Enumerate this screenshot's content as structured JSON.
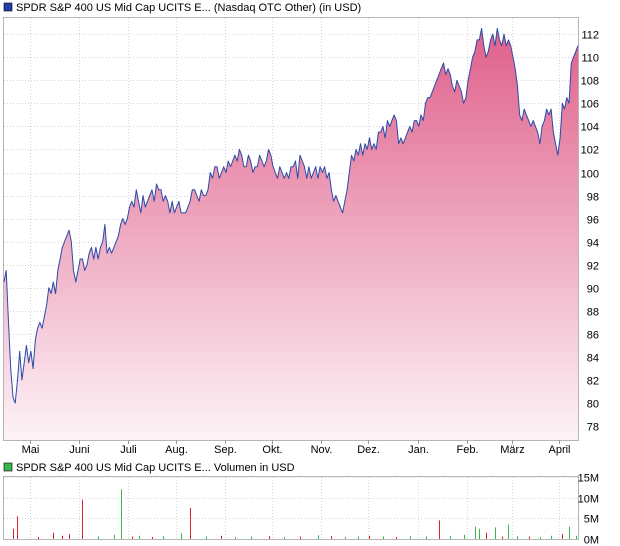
{
  "price_panel": {
    "legend_label": "SPDR S&P 400 US Mid Cap UCITS E... (Nasdaq OTC Other) (in USD)",
    "legend_color": "#1f3fa8"
  },
  "volume_panel": {
    "legend_label": "SPDR S&P 400 US Mid Cap UCITS E... Volumen in USD",
    "legend_color": "#39b54a"
  },
  "chart_data": [
    {
      "type": "area",
      "series": [
        {
          "name": "SPDR S&P 400 US Mid Cap UCITS E... (Nasdaq OTC Other) (in USD)"
        }
      ],
      "y_ticks": [
        78,
        80,
        82,
        84,
        86,
        88,
        90,
        92,
        94,
        96,
        98,
        100,
        102,
        104,
        106,
        108,
        110,
        112
      ],
      "ylim": [
        76.8,
        113.4
      ],
      "x_tick_labels": [
        "Mai",
        "Juni",
        "Juli",
        "Aug.",
        "Sep.",
        "Okt.",
        "Nov.",
        "Dez.",
        "Jan.",
        "Feb.",
        "März",
        "April"
      ],
      "x_tick_positions": [
        11.5,
        33.5,
        55.5,
        76.5,
        98.5,
        119.5,
        141.5,
        162.5,
        184.5,
        206.5,
        226.5,
        247.5
      ],
      "x_range": [
        0,
        256
      ],
      "line_color": "#2a4aa8",
      "fill_top_color": "#e0608a",
      "fill_bottom_color": "#fdf3f7",
      "grid": true,
      "points": [
        [
          0,
          90.5
        ],
        [
          1,
          91.5
        ],
        [
          2,
          87
        ],
        [
          3,
          83
        ],
        [
          4,
          80.5
        ],
        [
          5,
          80
        ],
        [
          6,
          82
        ],
        [
          7,
          84.5
        ],
        [
          8,
          82
        ],
        [
          9,
          83.5
        ],
        [
          10,
          85
        ],
        [
          11,
          83.5
        ],
        [
          12,
          84.5
        ],
        [
          13,
          83
        ],
        [
          14,
          85.5
        ],
        [
          15,
          86.5
        ],
        [
          16,
          87
        ],
        [
          17,
          86.5
        ],
        [
          18,
          87.5
        ],
        [
          19,
          88.5
        ],
        [
          20,
          90
        ],
        [
          21,
          89.5
        ],
        [
          22,
          90.5
        ],
        [
          23,
          89.5
        ],
        [
          24,
          91.5
        ],
        [
          25,
          92.5
        ],
        [
          26,
          93.5
        ],
        [
          27,
          94
        ],
        [
          28,
          94.5
        ],
        [
          29,
          95
        ],
        [
          30,
          94
        ],
        [
          31,
          91.5
        ],
        [
          32,
          90.5
        ],
        [
          33,
          91.5
        ],
        [
          34,
          92.5
        ],
        [
          35,
          92.5
        ],
        [
          36,
          91.5
        ],
        [
          37,
          92
        ],
        [
          38,
          93
        ],
        [
          39,
          93.5
        ],
        [
          40,
          92.5
        ],
        [
          41,
          93.5
        ],
        [
          42,
          92.5
        ],
        [
          43,
          93.5
        ],
        [
          44,
          94
        ],
        [
          45,
          95.5
        ],
        [
          46,
          93
        ],
        [
          47,
          93.5
        ],
        [
          48,
          93
        ],
        [
          49,
          93.5
        ],
        [
          50,
          94
        ],
        [
          51,
          94.5
        ],
        [
          52,
          95.5
        ],
        [
          53,
          96
        ],
        [
          54,
          95.5
        ],
        [
          55,
          96
        ],
        [
          56,
          97
        ],
        [
          57,
          97.5
        ],
        [
          58,
          97
        ],
        [
          59,
          98.5
        ],
        [
          60,
          97.5
        ],
        [
          61,
          96.5
        ],
        [
          62,
          98
        ],
        [
          63,
          97
        ],
        [
          64,
          97.5
        ],
        [
          65,
          98
        ],
        [
          66,
          98.5
        ],
        [
          67,
          97.5
        ],
        [
          68,
          99
        ],
        [
          69,
          98.5
        ],
        [
          70,
          98.5
        ],
        [
          71,
          97.5
        ],
        [
          72,
          98
        ],
        [
          73,
          97.5
        ],
        [
          74,
          96.5
        ],
        [
          75,
          97.5
        ],
        [
          76,
          96.5
        ],
        [
          77,
          97
        ],
        [
          78,
          97.5
        ],
        [
          79,
          96.5
        ],
        [
          80,
          96.5
        ],
        [
          81,
          96.5
        ],
        [
          82,
          97
        ],
        [
          83,
          97.5
        ],
        [
          84,
          98.5
        ],
        [
          85,
          98.5
        ],
        [
          86,
          98
        ],
        [
          87,
          97.5
        ],
        [
          88,
          98.5
        ],
        [
          89,
          98
        ],
        [
          90,
          98
        ],
        [
          91,
          98.5
        ],
        [
          92,
          100
        ],
        [
          93,
          99.5
        ],
        [
          94,
          100.5
        ],
        [
          95,
          100.5
        ],
        [
          96,
          99.5
        ],
        [
          97,
          100
        ],
        [
          98,
          100.5
        ],
        [
          99,
          100
        ],
        [
          100,
          101
        ],
        [
          101,
          100.5
        ],
        [
          102,
          101
        ],
        [
          103,
          101.5
        ],
        [
          104,
          101
        ],
        [
          105,
          102
        ],
        [
          106,
          101.5
        ],
        [
          107,
          100.5
        ],
        [
          108,
          100.5
        ],
        [
          109,
          101.5
        ],
        [
          110,
          101
        ],
        [
          111,
          100
        ],
        [
          112,
          100.5
        ],
        [
          113,
          100.5
        ],
        [
          114,
          101.5
        ],
        [
          115,
          101
        ],
        [
          116,
          100.5
        ],
        [
          117,
          101
        ],
        [
          118,
          102
        ],
        [
          119,
          101.5
        ],
        [
          120,
          100.5
        ],
        [
          121,
          100
        ],
        [
          122,
          99.5
        ],
        [
          123,
          100.5
        ],
        [
          124,
          100
        ],
        [
          125,
          99.5
        ],
        [
          126,
          100
        ],
        [
          127,
          99.5
        ],
        [
          128,
          100.5
        ],
        [
          129,
          100.5
        ],
        [
          130,
          101
        ],
        [
          131,
          99.5
        ],
        [
          132,
          101.5
        ],
        [
          133,
          101
        ],
        [
          134,
          100.5
        ],
        [
          135,
          99.5
        ],
        [
          136,
          100.5
        ],
        [
          137,
          99.5
        ],
        [
          138,
          100
        ],
        [
          139,
          100.5
        ],
        [
          140,
          99.5
        ],
        [
          141,
          100.5
        ],
        [
          142,
          100
        ],
        [
          143,
          100.5
        ],
        [
          144,
          99.5
        ],
        [
          145,
          100
        ],
        [
          146,
          98.5
        ],
        [
          147,
          97.5
        ],
        [
          148,
          98
        ],
        [
          149,
          97.5
        ],
        [
          150,
          97
        ],
        [
          151,
          96.5
        ],
        [
          152,
          97.5
        ],
        [
          153,
          98.5
        ],
        [
          154,
          100
        ],
        [
          155,
          101.5
        ],
        [
          156,
          101
        ],
        [
          157,
          102
        ],
        [
          158,
          101.5
        ],
        [
          159,
          102.5
        ],
        [
          160,
          101.5
        ],
        [
          161,
          102.5
        ],
        [
          162,
          102
        ],
        [
          163,
          103
        ],
        [
          164,
          102
        ],
        [
          165,
          102.5
        ],
        [
          166,
          102
        ],
        [
          167,
          103.5
        ],
        [
          168,
          103.5
        ],
        [
          169,
          104
        ],
        [
          170,
          103
        ],
        [
          171,
          104.5
        ],
        [
          172,
          104
        ],
        [
          173,
          104.5
        ],
        [
          174,
          105
        ],
        [
          175,
          104.5
        ],
        [
          176,
          102.5
        ],
        [
          177,
          103
        ],
        [
          178,
          102.5
        ],
        [
          179,
          103
        ],
        [
          180,
          103.5
        ],
        [
          181,
          104
        ],
        [
          182,
          103.5
        ],
        [
          183,
          104.5
        ],
        [
          184,
          104.5
        ],
        [
          185,
          104
        ],
        [
          186,
          105
        ],
        [
          187,
          104.5
        ],
        [
          188,
          106
        ],
        [
          189,
          106.5
        ],
        [
          190,
          106.5
        ],
        [
          191,
          107
        ],
        [
          192,
          107.5
        ],
        [
          193,
          108
        ],
        [
          194,
          108.5
        ],
        [
          195,
          109
        ],
        [
          196,
          109.5
        ],
        [
          197,
          108.5
        ],
        [
          198,
          109
        ],
        [
          199,
          108.5
        ],
        [
          200,
          107.5
        ],
        [
          201,
          107
        ],
        [
          202,
          108
        ],
        [
          203,
          107.5
        ],
        [
          204,
          107
        ],
        [
          205,
          106
        ],
        [
          206,
          106.5
        ],
        [
          207,
          108
        ],
        [
          208,
          109
        ],
        [
          209,
          110
        ],
        [
          210,
          110.5
        ],
        [
          211,
          111.5
        ],
        [
          212,
          111.5
        ],
        [
          213,
          112.5
        ],
        [
          214,
          111
        ],
        [
          215,
          110
        ],
        [
          216,
          110.5
        ],
        [
          217,
          111.5
        ],
        [
          218,
          112
        ],
        [
          219,
          111
        ],
        [
          220,
          112.5
        ],
        [
          221,
          111.5
        ],
        [
          222,
          111
        ],
        [
          223,
          112
        ],
        [
          224,
          111
        ],
        [
          225,
          111.5
        ],
        [
          226,
          111
        ],
        [
          227,
          110
        ],
        [
          228,
          109
        ],
        [
          229,
          107.5
        ],
        [
          230,
          105
        ],
        [
          231,
          104.5
        ],
        [
          232,
          105.5
        ],
        [
          233,
          105
        ],
        [
          234,
          104.5
        ],
        [
          235,
          104
        ],
        [
          236,
          104.5
        ],
        [
          237,
          104
        ],
        [
          238,
          103.5
        ],
        [
          239,
          102.5
        ],
        [
          240,
          104
        ],
        [
          241,
          104.5
        ],
        [
          242,
          105.5
        ],
        [
          243,
          105
        ],
        [
          244,
          105.5
        ],
        [
          245,
          103.5
        ],
        [
          246,
          102.5
        ],
        [
          247,
          101.5
        ],
        [
          248,
          103
        ],
        [
          249,
          106
        ],
        [
          250,
          105.5
        ],
        [
          251,
          106.5
        ],
        [
          252,
          106
        ],
        [
          253,
          109.5
        ],
        [
          254,
          110
        ],
        [
          255,
          110.5
        ],
        [
          256,
          111
        ]
      ]
    },
    {
      "type": "bar",
      "series": [
        {
          "name": "SPDR S&P 400 US Mid Cap UCITS E... Volumen in USD"
        }
      ],
      "y_ticks": [
        0,
        5,
        10,
        15
      ],
      "y_tick_labels": [
        "0M",
        "5M",
        "10M",
        "15M"
      ],
      "ylim": [
        0,
        15
      ],
      "up_color": "#39b54a",
      "down_color": "#d9262c",
      "bars": [
        [
          4,
          2.5,
          "down"
        ],
        [
          6,
          5.5,
          "down"
        ],
        [
          15,
          0.5,
          "down"
        ],
        [
          22,
          1.5,
          "down"
        ],
        [
          26,
          0.8,
          "down"
        ],
        [
          29,
          1.2,
          "down"
        ],
        [
          35,
          9.5,
          "down"
        ],
        [
          42,
          0.6,
          "up"
        ],
        [
          49,
          1.0,
          "up"
        ],
        [
          52,
          12.0,
          "up"
        ],
        [
          57,
          0.6,
          "down"
        ],
        [
          60,
          0.8,
          "up"
        ],
        [
          66,
          0.5,
          "down"
        ],
        [
          71,
          0.7,
          "up"
        ],
        [
          79,
          1.4,
          "up"
        ],
        [
          83,
          7.5,
          "down"
        ],
        [
          90,
          0.6,
          "up"
        ],
        [
          97,
          0.8,
          "down"
        ],
        [
          103,
          0.5,
          "up"
        ],
        [
          110,
          0.6,
          "up"
        ],
        [
          118,
          0.7,
          "down"
        ],
        [
          125,
          0.5,
          "up"
        ],
        [
          132,
          0.6,
          "down"
        ],
        [
          140,
          0.9,
          "up"
        ],
        [
          146,
          0.7,
          "down"
        ],
        [
          152,
          0.5,
          "up"
        ],
        [
          158,
          0.6,
          "up"
        ],
        [
          163,
          0.8,
          "down"
        ],
        [
          169,
          0.6,
          "up"
        ],
        [
          175,
          0.5,
          "down"
        ],
        [
          181,
          0.7,
          "up"
        ],
        [
          188,
          0.6,
          "up"
        ],
        [
          194,
          4.5,
          "down"
        ],
        [
          199,
          0.8,
          "up"
        ],
        [
          205,
          1.0,
          "up"
        ],
        [
          210,
          3.0,
          "up"
        ],
        [
          212,
          2.5,
          "up"
        ],
        [
          215,
          1.5,
          "down"
        ],
        [
          219,
          2.8,
          "up"
        ],
        [
          222,
          0.6,
          "down"
        ],
        [
          225,
          3.5,
          "up"
        ],
        [
          229,
          0.7,
          "up"
        ],
        [
          234,
          0.6,
          "down"
        ],
        [
          239,
          0.5,
          "up"
        ],
        [
          244,
          0.8,
          "up"
        ],
        [
          249,
          1.2,
          "down"
        ],
        [
          252,
          3.0,
          "up"
        ],
        [
          255,
          0.8,
          "up"
        ]
      ]
    }
  ]
}
